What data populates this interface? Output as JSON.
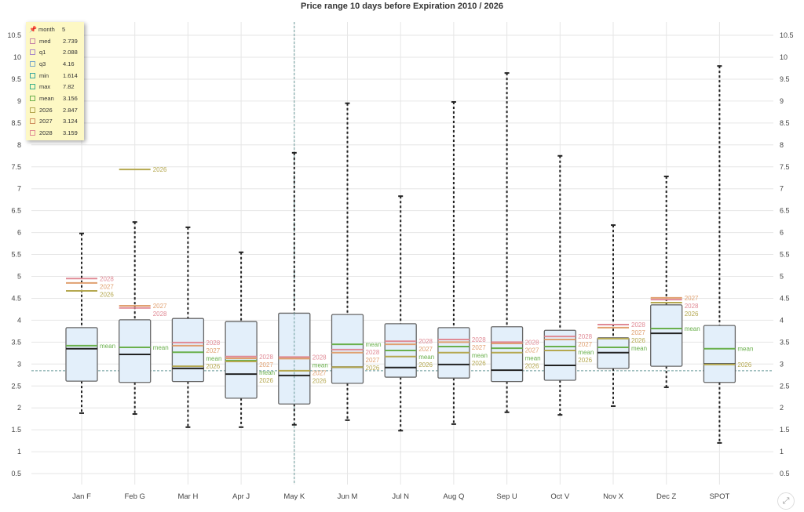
{
  "chart_data": {
    "type": "boxplot",
    "title": "Price range 10 days before Expiration 2010 / 2026",
    "ylim": [
      0.3,
      10.8
    ],
    "yticks": [
      "0.5",
      "1",
      "1.5",
      "2",
      "2.5",
      "3",
      "3.5",
      "4",
      "4.5",
      "5",
      "5.5",
      "6",
      "6.5",
      "7",
      "7.5",
      "8",
      "8.5",
      "9",
      "9.5",
      "10",
      "10.5"
    ],
    "reference_line": 2.847,
    "selected_category": "May K",
    "categories": [
      "Jan F",
      "Feb G",
      "Mar H",
      "Apr J",
      "May K",
      "Jun M",
      "Jul N",
      "Aug Q",
      "Sep U",
      "Oct V",
      "Nov X",
      "Dec Z",
      "SPOT"
    ],
    "min": [
      1.88,
      1.86,
      1.56,
      1.56,
      1.614,
      1.72,
      1.48,
      1.63,
      1.9,
      1.84,
      2.04,
      2.47,
      1.2
    ],
    "q1": [
      2.61,
      2.58,
      2.6,
      2.22,
      2.088,
      2.56,
      2.7,
      2.68,
      2.6,
      2.63,
      2.9,
      2.95,
      2.58
    ],
    "med": [
      3.35,
      3.22,
      2.9,
      2.77,
      2.739,
      2.93,
      2.92,
      2.99,
      2.86,
      2.97,
      3.26,
      3.7,
      3.0
    ],
    "q3": [
      3.83,
      4.01,
      4.04,
      3.97,
      4.16,
      4.13,
      3.92,
      3.83,
      3.85,
      3.77,
      3.6,
      4.35,
      3.88
    ],
    "max": [
      5.98,
      6.24,
      6.12,
      5.55,
      7.82,
      8.95,
      6.83,
      8.98,
      9.64,
      7.75,
      6.17,
      7.28,
      9.8
    ],
    "mean": [
      3.42,
      3.38,
      3.27,
      3.08,
      3.156,
      3.45,
      3.31,
      3.4,
      3.36,
      3.4,
      3.38,
      3.81,
      3.35
    ],
    "series": [
      {
        "name": "2026",
        "color": "#b5a850",
        "values": [
          4.67,
          7.44,
          2.95,
          3.06,
          2.847,
          2.93,
          3.17,
          3.26,
          3.26,
          3.31,
          3.58,
          4.4,
          2.99
        ]
      },
      {
        "name": "2027",
        "color": "#e0a070",
        "values": [
          4.85,
          4.33,
          3.42,
          3.13,
          3.124,
          3.26,
          3.45,
          3.5,
          3.47,
          3.56,
          3.83,
          4.51,
          null
        ]
      },
      {
        "name": "2028",
        "color": "#e08a95",
        "values": [
          4.95,
          4.28,
          3.49,
          3.17,
          3.159,
          3.33,
          3.52,
          3.56,
          3.5,
          3.63,
          3.9,
          4.47,
          null
        ]
      }
    ],
    "mean_label": "mean",
    "colors": {
      "mean": "#6ab04c",
      "median": "#222222",
      "box": "#e3effa"
    }
  },
  "legend": {
    "rows": [
      {
        "k": "month",
        "v": "5",
        "c": "pin"
      },
      {
        "k": "med",
        "v": "2.739",
        "c": "#c98aa8"
      },
      {
        "k": "q1",
        "v": "2.088",
        "c": "#a98ac9"
      },
      {
        "k": "q3",
        "v": "4.16",
        "c": "#7aa8c9"
      },
      {
        "k": "min",
        "v": "1.614",
        "c": "#3aa8a0"
      },
      {
        "k": "max",
        "v": "7.82",
        "c": "#3ab08a"
      },
      {
        "k": "mean",
        "v": "3.156",
        "c": "#6ab04c"
      },
      {
        "k": "2026",
        "v": "2.847",
        "c": "#b5a850"
      },
      {
        "k": "2027",
        "v": "3.124",
        "c": "#d09060"
      },
      {
        "k": "2028",
        "v": "3.159",
        "c": "#e08a95"
      }
    ]
  },
  "expand_icon": "expand-icon"
}
